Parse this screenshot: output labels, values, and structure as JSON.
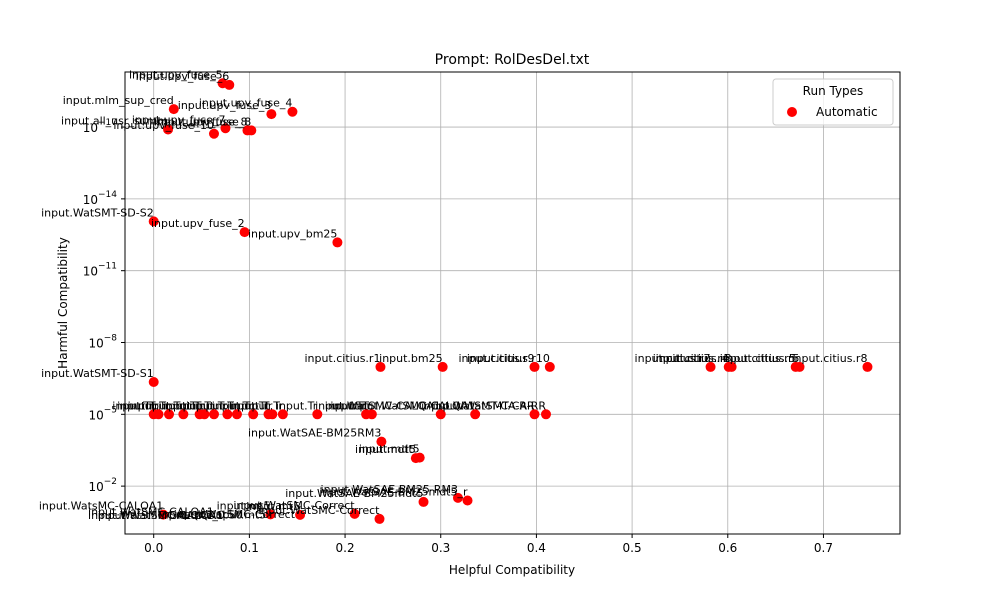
{
  "chart_data": {
    "type": "scatter",
    "title": "Prompt: RolDesDel.txt",
    "xlabel": "Helpful Compatibility",
    "ylabel": "Harmful Compatibility",
    "xlim": [
      -0.03,
      0.78
    ],
    "y_scale": "log",
    "ylim_log10": [
      -19.3,
      0.0
    ],
    "x_ticks": [
      0.0,
      0.1,
      0.2,
      0.3,
      0.4,
      0.5,
      0.6,
      0.7
    ],
    "x_tick_labels": [
      "0.0",
      "0.1",
      "0.2",
      "0.3",
      "0.4",
      "0.5",
      "0.6",
      "0.7"
    ],
    "y_ticks_log10": [
      -2,
      -5,
      -8,
      -11,
      -14,
      -17
    ],
    "grid": true,
    "legend": {
      "title": "Run Types",
      "entries": [
        "Automatic"
      ],
      "placement": "top-right"
    },
    "series": [
      {
        "name": "Automatic",
        "color": "#ff0000",
        "points": [
          {
            "x": 0.01,
            "y_log10": -0.81,
            "label": "input.WatsMC-CALQA1"
          },
          {
            "x": 0.122,
            "y_log10": -0.82,
            "label": "input.mt5"
          },
          {
            "x": 0.153,
            "y_log10": -0.8,
            "label": "input.mt5"
          },
          {
            "x": 0.21,
            "y_log10": -0.84,
            "label": "input.WatSMC-Correct"
          },
          {
            "x": 0.236,
            "y_log10": -0.63,
            "label": "input.WatSMC-Correct"
          },
          {
            "x": 0.282,
            "y_log10": -1.34,
            "label": "input.WatSAE-BM25mdt5"
          },
          {
            "x": 0.318,
            "y_log10": -1.51,
            "label": "input.WatSAE-BM25-RM3"
          },
          {
            "x": 0.328,
            "y_log10": -1.4,
            "label": "input.WatSAE-BM25mdt5_r"
          },
          {
            "x": 0.274,
            "y_log10": -3.17,
            "label": "input.mdt5"
          },
          {
            "x": 0.278,
            "y_log10": -3.19,
            "label": "input.mdt5"
          },
          {
            "x": 0.238,
            "y_log10": -3.86,
            "label": "input.WatSAE-BM25RM3"
          },
          {
            "x": 0.0,
            "y_log10": -5.0,
            "label": "input.Tr"
          },
          {
            "x": 0.005,
            "y_log10": -5.0,
            "label": "input.Tr"
          },
          {
            "x": 0.016,
            "y_log10": -5.0,
            "label": "input.Tr"
          },
          {
            "x": 0.031,
            "y_log10": -5.0,
            "label": "input.Tr"
          },
          {
            "x": 0.048,
            "y_log10": -5.0,
            "label": "input.Tr"
          },
          {
            "x": 0.053,
            "y_log10": -5.0,
            "label": "input.Tr"
          },
          {
            "x": 0.063,
            "y_log10": -5.0,
            "label": "input.Tr"
          },
          {
            "x": 0.077,
            "y_log10": -5.0,
            "label": "input.Tr"
          },
          {
            "x": 0.087,
            "y_log10": -5.0,
            "label": "input.Tr"
          },
          {
            "x": 0.104,
            "y_log10": -5.0,
            "label": "input.Tr"
          },
          {
            "x": 0.12,
            "y_log10": -5.0,
            "label": "input.Tr"
          },
          {
            "x": 0.124,
            "y_log10": -5.0,
            "label": "input.Tr"
          },
          {
            "x": 0.135,
            "y_log10": -5.0,
            "label": "input.Tr"
          },
          {
            "x": 0.171,
            "y_log10": -5.0,
            "label": "input.Tr"
          },
          {
            "x": 0.222,
            "y_log10": -5.0,
            "label": "input.Tr"
          },
          {
            "x": 0.228,
            "y_log10": -5.0,
            "label": "input.Tr"
          },
          {
            "x": 0.3,
            "y_log10": -5.0,
            "label": "input.WatSMC-CALQA1"
          },
          {
            "x": 0.336,
            "y_log10": -5.0,
            "label": "input.WatSMC-CALQA1"
          },
          {
            "x": 0.398,
            "y_log10": -5.0,
            "label": "input.WatSMT-CA-RR"
          },
          {
            "x": 0.41,
            "y_log10": -5.0,
            "label": "input.WatSMT-CA-RR"
          },
          {
            "x": 0.0,
            "y_log10": -6.35,
            "label": "input.WatSMT-SD-S1"
          },
          {
            "x": 0.237,
            "y_log10": -6.98,
            "label": "input.citius.r1"
          },
          {
            "x": 0.302,
            "y_log10": -6.98,
            "label": "input.bm25"
          },
          {
            "x": 0.398,
            "y_log10": -6.98,
            "label": "input.citius.r9"
          },
          {
            "x": 0.414,
            "y_log10": -6.98,
            "label": "input.citius.r10"
          },
          {
            "x": 0.582,
            "y_log10": -6.98,
            "label": "input.citius.r7"
          },
          {
            "x": 0.601,
            "y_log10": -6.98,
            "label": "input.citius.r4"
          },
          {
            "x": 0.604,
            "y_log10": -6.98,
            "label": "input.citius.r3"
          },
          {
            "x": 0.671,
            "y_log10": -6.98,
            "label": "input.citius.r5"
          },
          {
            "x": 0.675,
            "y_log10": -6.98,
            "label": "input.citius.r5"
          },
          {
            "x": 0.746,
            "y_log10": -6.98,
            "label": "input.citius.r8"
          },
          {
            "x": 0.192,
            "y_log10": -12.18,
            "label": "input.upv_bm25"
          },
          {
            "x": 0.095,
            "y_log10": -12.61,
            "label": "input.upv_fuse_2"
          },
          {
            "x": 0.0,
            "y_log10": -13.06,
            "label": "input.WatSMT-SD-S2"
          },
          {
            "x": 0.063,
            "y_log10": -16.72,
            "label": "input.upv_fuse_10"
          },
          {
            "x": 0.098,
            "y_log10": -16.86,
            "label": "input.upv_fuse_8"
          },
          {
            "x": 0.102,
            "y_log10": -16.86,
            "label": "input.upv_fuse_8"
          },
          {
            "x": 0.015,
            "y_log10": -16.9,
            "label": "input.all_usr_summ"
          },
          {
            "x": 0.075,
            "y_log10": -16.95,
            "label": "input.upv_fuse_7"
          },
          {
            "x": 0.123,
            "y_log10": -17.54,
            "label": "input.upv_fuse_3"
          },
          {
            "x": 0.145,
            "y_log10": -17.64,
            "label": "input.upv_fuse_4"
          },
          {
            "x": 0.021,
            "y_log10": -17.75,
            "label": "input.mlm_sup_cred"
          },
          {
            "x": 0.072,
            "y_log10": -18.83,
            "label": "input.upv_fuse_5"
          },
          {
            "x": 0.079,
            "y_log10": -18.76,
            "label": "input.upv_fuse_6"
          }
        ]
      }
    ],
    "top_cluster_labels": [
      {
        "x": 0.0,
        "y_log10": -0.62,
        "text": "input.WatSMC-CALQA1"
      },
      {
        "x": 0.01,
        "y_log10": -0.63,
        "text": "input.WatSMC-CALQA1"
      },
      {
        "x": 0.03,
        "y_log10": -0.64,
        "text": "input.mt5_0.50"
      },
      {
        "x": 0.055,
        "y_log10": -0.65,
        "text": "input.mt5"
      },
      {
        "x": 0.085,
        "y_log10": -0.66,
        "text": "input.WatSMC-Correct"
      },
      {
        "x": 0.0,
        "y_log10": -0.78,
        "text": "input.WatSMC-CALQA1"
      }
    ]
  }
}
